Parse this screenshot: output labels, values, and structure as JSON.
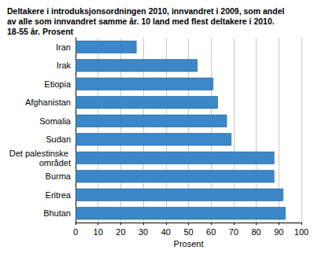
{
  "chart_data": {
    "type": "bar",
    "orientation": "horizontal",
    "title": "Deltakere i introduksjonsordningen 2010, innvandret i 2009, som andel\nav alle som innvandret samme år. 10 land med flest deltakere i 2010.\n18-55 år. Prosent",
    "x_label": "Prosent",
    "categories": [
      "Iran",
      "Irak",
      "Etiopia",
      "Afghanistan",
      "Somalia",
      "Sudan",
      "Det palestinske området",
      "Burma",
      "Eritrea",
      "Bhutan"
    ],
    "values": [
      27,
      54,
      61,
      63,
      67,
      69,
      88,
      88,
      92,
      93
    ],
    "color": "#3b87c7",
    "xlim": [
      0,
      100
    ],
    "xticks": [
      0,
      10,
      20,
      30,
      40,
      50,
      60,
      70,
      80,
      90,
      100
    ],
    "grid": true
  }
}
